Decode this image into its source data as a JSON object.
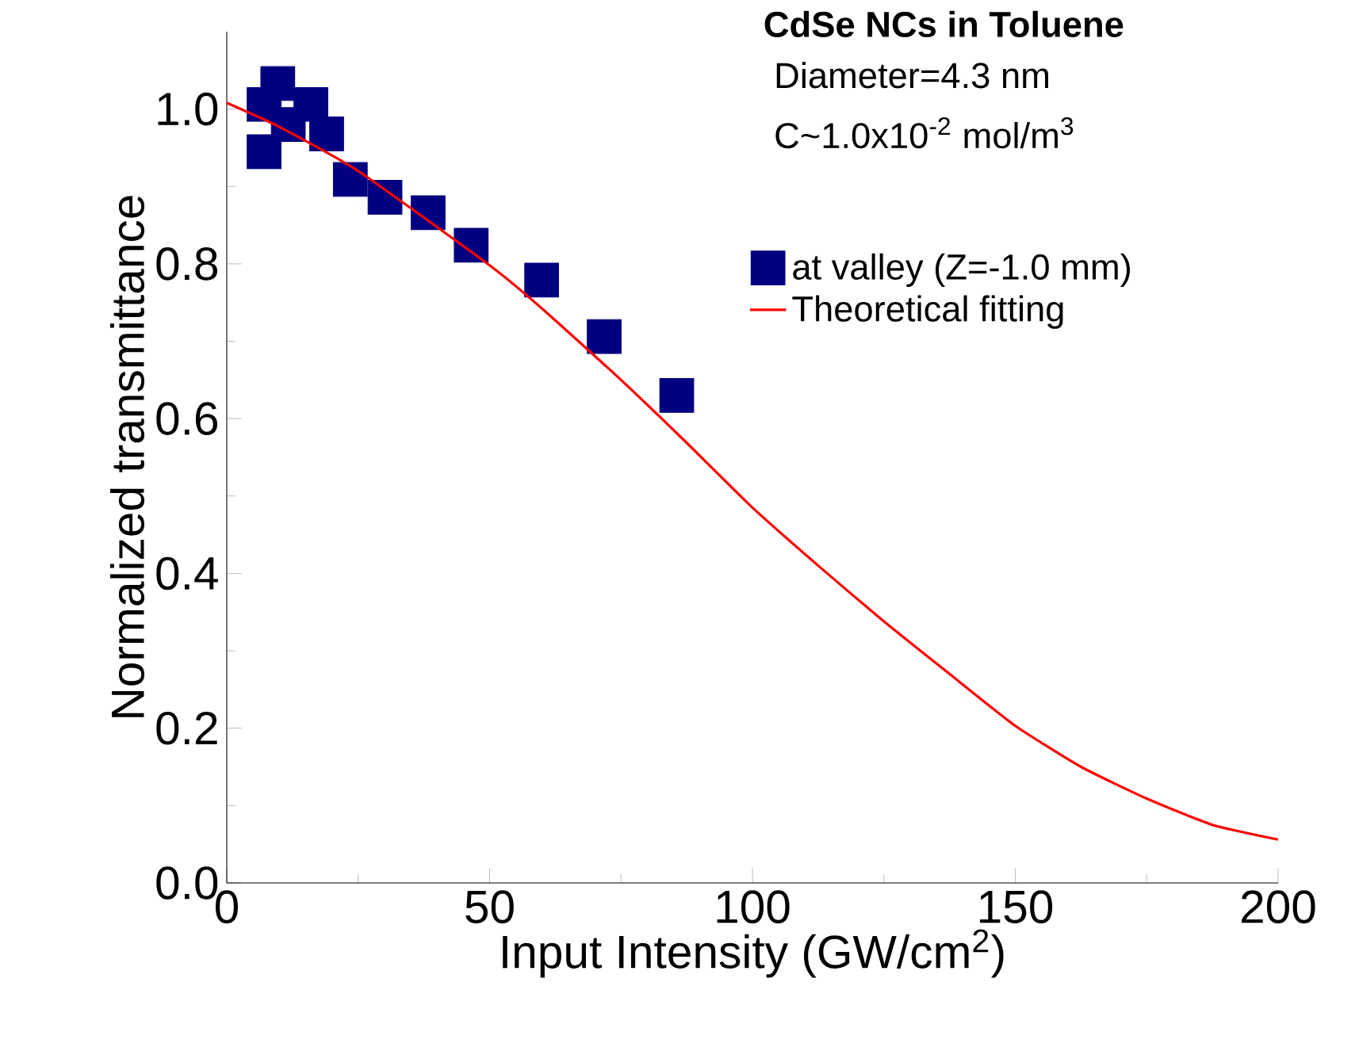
{
  "chart_data": {
    "type": "scatter",
    "xlabel": "Input Intensity (GW/cm$^{2}$)",
    "ylabel": "Normalized transmittance",
    "annotations": [
      "**CdSe NCs in Toluene**",
      "Diameter=4.3 nm",
      "C~1.0x10$^{-2}$ mol/m$^{3}$"
    ],
    "xlim": [
      0,
      200
    ],
    "ylim": [
      0,
      1.1
    ],
    "xticks": [
      0,
      50,
      100,
      150,
      200
    ],
    "yticks": [
      {
        "value": 0,
        "label": "0.0"
      },
      {
        "value": 0.2,
        "label": "0.2"
      },
      {
        "value": 0.4,
        "label": "0.4"
      },
      {
        "value": 0.6,
        "label": "0.6"
      },
      {
        "value": 0.8,
        "label": "0.8"
      },
      {
        "value": 1.0,
        "label": "1.0"
      }
    ],
    "legend": "top right",
    "grid": false,
    "series": [
      {
        "name": "at valley (Z=-1.0 mm)",
        "type": "scatter",
        "marker": "square",
        "color": "#000080",
        "x": [
          7.1,
          7.1,
          9.7,
          11.7,
          16,
          19,
          23.5,
          30.1,
          38.3,
          46.5,
          59.9,
          71.8,
          85.6
        ],
        "values": [
          1.006,
          0.945,
          1.033,
          0.98,
          1.006,
          0.968,
          0.909,
          0.886,
          0.866,
          0.824,
          0.779,
          0.706,
          0.63
        ]
      },
      {
        "name": "Theoretical fitting",
        "type": "line",
        "marker": "none",
        "line_style": "solid",
        "color": "#ff0000",
        "x": [
          0,
          10,
          25,
          50,
          60,
          75,
          87,
          100,
          112.5,
          125,
          137.5,
          150,
          162.5,
          175,
          187.5,
          200
        ],
        "values": [
          1.008,
          0.977,
          0.92,
          0.798,
          0.742,
          0.65,
          0.572,
          0.485,
          0.41,
          0.338,
          0.27,
          0.203,
          0.15,
          0.109,
          0.075,
          0.056
        ]
      }
    ]
  }
}
